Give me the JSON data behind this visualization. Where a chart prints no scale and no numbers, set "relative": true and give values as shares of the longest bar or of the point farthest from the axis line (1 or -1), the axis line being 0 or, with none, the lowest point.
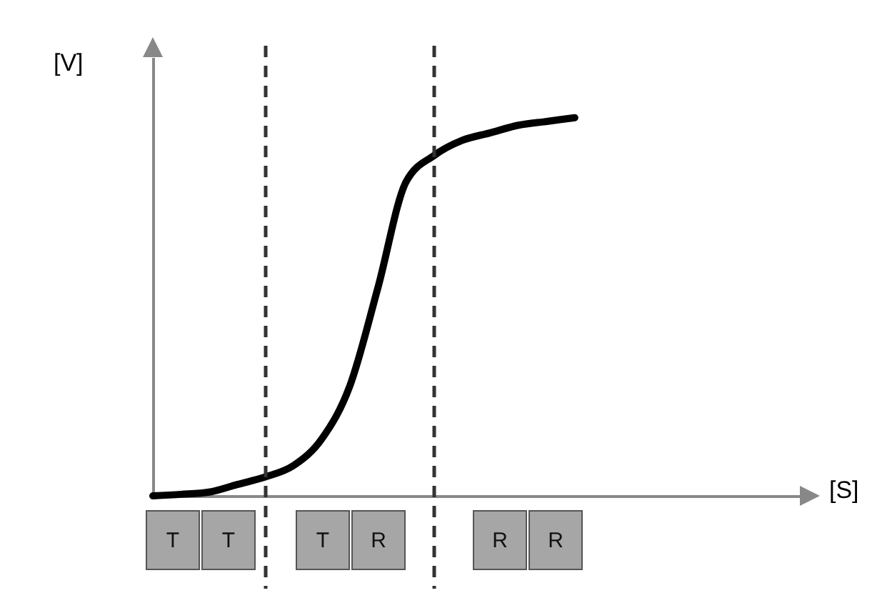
{
  "chart_data": {
    "type": "line",
    "relative": true,
    "xlabel": "[S]",
    "ylabel": "[V]",
    "categories": [
      null,
      null,
      null,
      null,
      null,
      null,
      null,
      null,
      null,
      null,
      null,
      null,
      null,
      null,
      null,
      null,
      null,
      null,
      null,
      null,
      null,
      null,
      null,
      null
    ],
    "series": [
      {
        "color": "#000000",
        "values": [
          0,
          0.004,
          0.01,
          0.03,
          0.05,
          0.08,
          0.15,
          0.29,
          0.55,
          0.83,
          0.9,
          0.94,
          0.96,
          0.98,
          0.99,
          1,
          null,
          null,
          null,
          null,
          null,
          null,
          null,
          null
        ]
      }
    ],
    "annotations": [
      "T",
      "T",
      "T",
      "R",
      "R",
      "R"
    ],
    "marker": "none",
    "line_style": "solid",
    "grid": false
  }
}
